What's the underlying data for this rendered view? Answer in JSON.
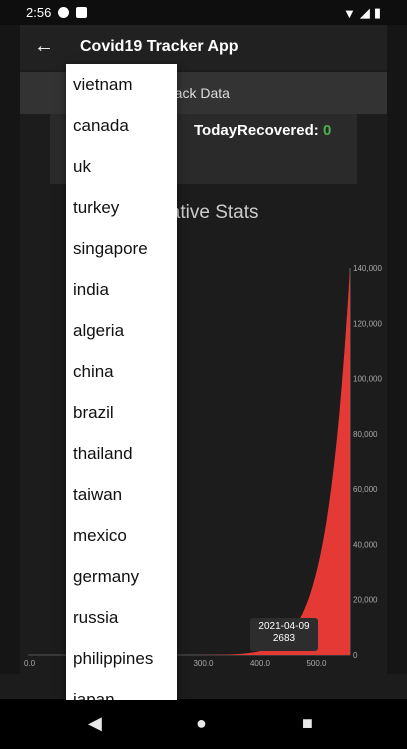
{
  "status_bar": {
    "time": "2:56"
  },
  "app_bar": {
    "title": "Covid19 Tracker App"
  },
  "track_label": "rack Data",
  "card": {
    "recovered_label": "TodayRecovered:",
    "recovered_value": "0"
  },
  "section_title": "ulative Stats",
  "dropdown_items": [
    "vietnam",
    "canada",
    "uk",
    "turkey",
    "singapore",
    "india",
    "algeria",
    "china",
    "brazil",
    "thailand",
    "taiwan",
    "mexico",
    "germany",
    "russia",
    "philippines",
    "japan"
  ],
  "chart_data": {
    "type": "area",
    "title": "",
    "x_ticks": [
      "0.0",
      "300.0",
      "400.0",
      "500.0"
    ],
    "y_ticks": [
      "0",
      "20,000",
      "40,000",
      "60,000",
      "80,000",
      "100,000",
      "120,000",
      "140,000"
    ],
    "xlim": [
      0,
      570
    ],
    "ylim": [
      0,
      140000
    ],
    "tooltip": {
      "date": "2021-04-09",
      "value": "2683"
    },
    "series_color": "#e53935"
  }
}
